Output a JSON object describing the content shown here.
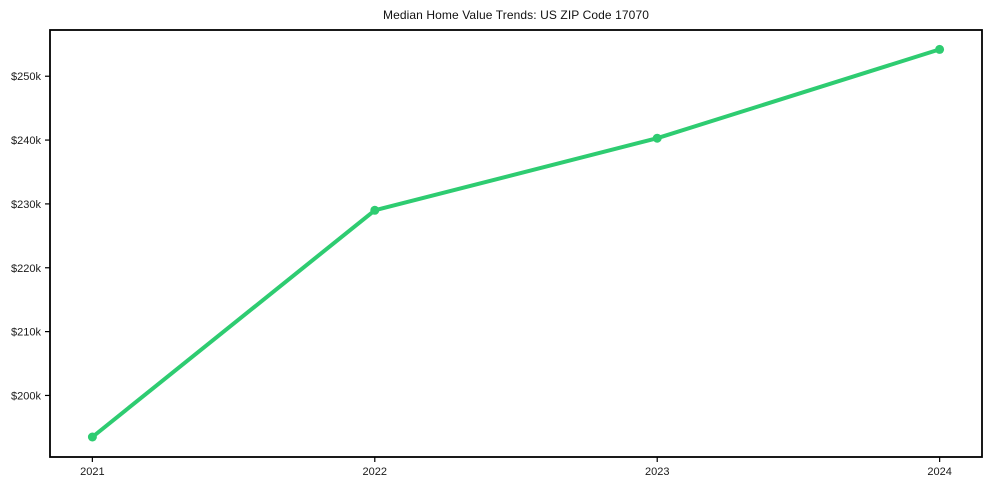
{
  "chart_data": {
    "type": "line",
    "title": "Median Home Value Trends: US ZIP Code 17070",
    "x": [
      2021,
      2022,
      2023,
      2024
    ],
    "x_tick_labels": [
      "2021",
      "2022",
      "2023",
      "2024"
    ],
    "values": [
      193500,
      229000,
      240300,
      254200
    ],
    "y_ticks": [
      {
        "value": 200000,
        "label": "$200k"
      },
      {
        "value": 210000,
        "label": "$210k"
      },
      {
        "value": 220000,
        "label": "$220k"
      },
      {
        "value": 230000,
        "label": "$230k"
      },
      {
        "value": 240000,
        "label": "$240k"
      },
      {
        "value": 250000,
        "label": "$250k"
      }
    ],
    "ylim": [
      190360,
      257240
    ],
    "xlabel": "",
    "ylabel": "",
    "grid": false,
    "legend": "none",
    "line_color": "#2ecc71",
    "marker": "circle",
    "frame_color": "#000000",
    "background_color": "#ffffff",
    "tick_label_color": "#1a1a1a"
  }
}
